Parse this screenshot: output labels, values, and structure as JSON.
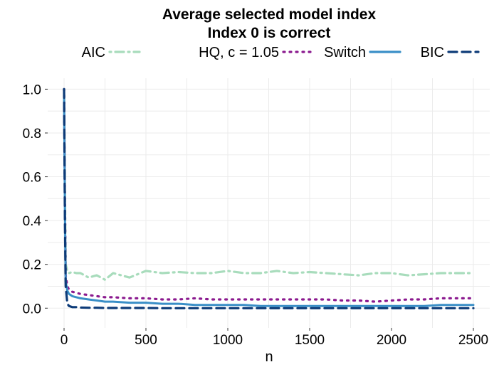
{
  "chart_data": {
    "type": "line",
    "title": "Average selected model index",
    "subtitle": "Index 0 is correct",
    "xlabel": "n",
    "ylabel": "",
    "xlim": [
      -100,
      2600
    ],
    "ylim": [
      -0.09,
      1.05
    ],
    "x_ticks": [
      0,
      500,
      1000,
      1500,
      2000,
      2500
    ],
    "x_tick_labels": [
      "0",
      "500",
      "1000",
      "1500",
      "2000",
      "2500"
    ],
    "y_ticks": [
      0.0,
      0.2,
      0.4,
      0.6,
      0.8,
      1.0
    ],
    "y_tick_labels": [
      "0.0",
      "0.2",
      "0.4",
      "0.6",
      "0.8",
      "1.0"
    ],
    "grid": true,
    "legend_position": "top",
    "series": [
      {
        "name": "AIC",
        "color": "#a8dcbc",
        "style": "dotdash",
        "x": [
          0,
          5,
          10,
          20,
          30,
          50,
          75,
          100,
          150,
          200,
          250,
          300,
          400,
          500,
          600,
          700,
          800,
          900,
          1000,
          1100,
          1200,
          1300,
          1400,
          1500,
          1600,
          1700,
          1800,
          1900,
          2000,
          2100,
          2200,
          2300,
          2400,
          2500
        ],
        "y": [
          1.0,
          0.55,
          0.2,
          0.17,
          0.16,
          0.165,
          0.16,
          0.16,
          0.14,
          0.15,
          0.13,
          0.16,
          0.14,
          0.17,
          0.16,
          0.165,
          0.16,
          0.16,
          0.17,
          0.16,
          0.16,
          0.17,
          0.16,
          0.165,
          0.16,
          0.155,
          0.15,
          0.16,
          0.16,
          0.15,
          0.155,
          0.16,
          0.16,
          0.16
        ]
      },
      {
        "name": "HQ, c = 1.05",
        "color": "#8b1a8f",
        "style": "dotted",
        "x": [
          0,
          5,
          10,
          20,
          30,
          50,
          75,
          100,
          150,
          200,
          250,
          300,
          400,
          500,
          600,
          700,
          800,
          900,
          1000,
          1100,
          1200,
          1300,
          1400,
          1500,
          1600,
          1700,
          1800,
          1900,
          2000,
          2100,
          2200,
          2300,
          2400,
          2500
        ],
        "y": [
          1.0,
          0.5,
          0.15,
          0.1,
          0.085,
          0.075,
          0.07,
          0.065,
          0.06,
          0.055,
          0.05,
          0.05,
          0.045,
          0.045,
          0.04,
          0.04,
          0.045,
          0.04,
          0.04,
          0.04,
          0.04,
          0.04,
          0.04,
          0.04,
          0.04,
          0.035,
          0.035,
          0.03,
          0.035,
          0.04,
          0.04,
          0.045,
          0.045,
          0.045
        ]
      },
      {
        "name": "Switch",
        "color": "#3a8fc7",
        "style": "solid",
        "x": [
          0,
          5,
          10,
          20,
          30,
          50,
          75,
          100,
          150,
          200,
          250,
          300,
          400,
          500,
          600,
          700,
          800,
          900,
          1000,
          1100,
          1200,
          1300,
          1400,
          1500,
          1600,
          1700,
          1800,
          1900,
          2000,
          2100,
          2200,
          2300,
          2400,
          2500
        ],
        "y": [
          1.0,
          0.45,
          0.12,
          0.08,
          0.065,
          0.055,
          0.05,
          0.045,
          0.04,
          0.035,
          0.03,
          0.03,
          0.025,
          0.025,
          0.02,
          0.02,
          0.015,
          0.015,
          0.015,
          0.015,
          0.01,
          0.01,
          0.01,
          0.01,
          0.01,
          0.01,
          0.01,
          0.01,
          0.01,
          0.01,
          0.01,
          0.015,
          0.015,
          0.015
        ]
      },
      {
        "name": "BIC",
        "color": "#0d3b78",
        "style": "dashed",
        "x": [
          0,
          5,
          10,
          20,
          30,
          50,
          75,
          100,
          150,
          200,
          250,
          300,
          400,
          500,
          600,
          700,
          800,
          900,
          1000,
          1100,
          1200,
          1300,
          1400,
          1500,
          1600,
          1700,
          1800,
          1900,
          2000,
          2100,
          2200,
          2300,
          2400,
          2500
        ],
        "y": [
          1.0,
          0.4,
          0.1,
          0.02,
          0.01,
          0.005,
          0.005,
          0.003,
          0.002,
          0.002,
          0.001,
          0.001,
          0.001,
          0.001,
          0.0,
          0.0,
          0.0,
          0.0,
          0.0,
          0.0,
          0.0,
          0.0,
          0.0,
          0.0,
          0.0,
          0.0,
          0.0,
          0.0,
          0.0,
          0.0,
          0.0,
          0.0,
          0.0,
          0.0
        ]
      }
    ]
  }
}
